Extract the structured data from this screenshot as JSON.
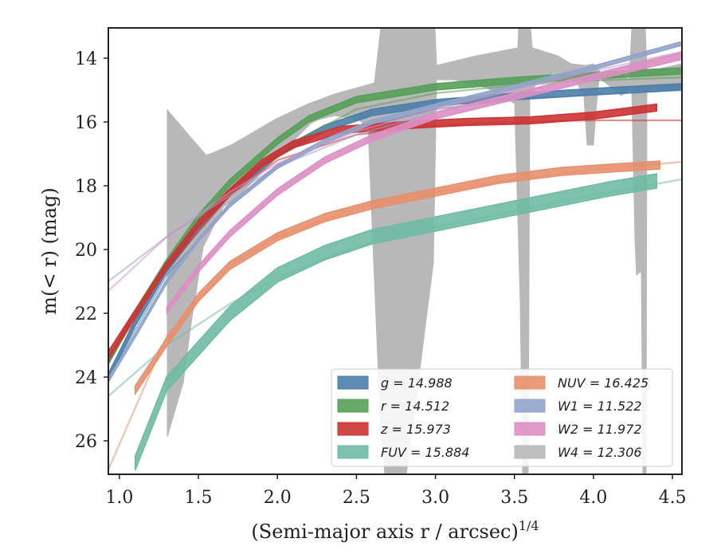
{
  "chart_data": {
    "type": "line",
    "xlabel": "(Semi-major axis r / arcsec)",
    "xlabel_sup": "1/4",
    "ylabel": "m(< r) (mag)",
    "xlim": [
      0.93,
      4.56
    ],
    "ylim": [
      27.05,
      13.05
    ],
    "y_inverted": true,
    "xticks": [
      1.0,
      1.5,
      2.0,
      2.5,
      3.0,
      3.5,
      4.0,
      4.5
    ],
    "xtick_labels": [
      "1.0",
      "1.5",
      "2.0",
      "2.5",
      "3.0",
      "3.5",
      "4.0",
      "4.5"
    ],
    "yticks": [
      14,
      16,
      18,
      20,
      22,
      24,
      26
    ],
    "ytick_labels": [
      "14",
      "16",
      "18",
      "20",
      "22",
      "24",
      "26"
    ],
    "legend_position": "lower-right",
    "legend_columns": 2,
    "series": [
      {
        "name": "g = 14.988",
        "band": "g",
        "color": "#4c7ea9",
        "kind": "band",
        "x": [
          0.93,
          1.1,
          1.3,
          1.5,
          1.7,
          2.0,
          2.3,
          2.6,
          3.0,
          3.5,
          4.0,
          4.55
        ],
        "y": [
          24.0,
          22.3,
          20.6,
          19.3,
          18.2,
          17.0,
          16.2,
          15.7,
          15.4,
          15.2,
          15.05,
          14.9
        ],
        "width": 0.2,
        "fit": {
          "x": [
            0.93,
            1.3,
            1.7,
            2.0,
            2.5,
            3.0,
            3.5,
            4.0,
            4.56
          ],
          "y": [
            24.0,
            20.8,
            18.6,
            17.4,
            16.2,
            15.6,
            15.3,
            15.15,
            15.0
          ]
        }
      },
      {
        "name": "r = 14.512",
        "band": "r",
        "color": "#55a059",
        "kind": "band",
        "x": [
          0.93,
          1.1,
          1.3,
          1.5,
          1.7,
          2.0,
          2.2,
          2.5,
          3.0,
          3.5,
          4.0,
          4.55
        ],
        "y": [
          23.5,
          22.0,
          20.4,
          19.0,
          17.9,
          16.6,
          15.9,
          15.3,
          14.9,
          14.7,
          14.55,
          14.4
        ],
        "width": 0.2,
        "fit": {
          "x": [
            0.93,
            1.3,
            1.7,
            2.0,
            2.5,
            3.0,
            3.5,
            4.0,
            4.56
          ],
          "y": [
            23.5,
            20.5,
            18.2,
            16.9,
            15.6,
            15.1,
            14.85,
            14.7,
            14.6
          ]
        }
      },
      {
        "name": "z = 15.973",
        "band": "z",
        "color": "#cc3333",
        "kind": "band",
        "x": [
          0.93,
          1.1,
          1.3,
          1.5,
          1.7,
          1.9,
          2.1,
          2.4,
          2.8,
          3.2,
          3.6,
          4.0,
          4.4
        ],
        "y": [
          23.3,
          22.0,
          20.5,
          19.2,
          18.2,
          17.3,
          16.7,
          16.25,
          16.1,
          16.0,
          15.95,
          15.8,
          15.55
        ],
        "width": 0.22,
        "fit": {
          "x": [
            0.93,
            1.3,
            1.7,
            2.0,
            2.5,
            3.0,
            3.5,
            4.0,
            4.56
          ],
          "y": [
            23.5,
            20.6,
            18.3,
            17.2,
            16.4,
            16.1,
            16.0,
            15.95,
            15.95
          ]
        }
      },
      {
        "name": "FUV = 15.884",
        "band": "FUV",
        "color": "#6fbba3",
        "kind": "band",
        "x": [
          1.1,
          1.3,
          1.5,
          1.7,
          2.0,
          2.3,
          2.6,
          3.0,
          3.4,
          3.8,
          4.1,
          4.4
        ],
        "y": [
          26.7,
          24.2,
          23.1,
          22.0,
          20.8,
          20.1,
          19.6,
          19.2,
          18.8,
          18.4,
          18.1,
          17.85
        ],
        "width": 0.45,
        "fit": {
          "x": [
            0.93,
            1.3,
            1.7,
            2.0,
            2.5,
            3.0,
            3.5,
            4.0,
            4.56
          ],
          "y": [
            24.6,
            23.0,
            21.7,
            20.9,
            19.9,
            19.3,
            18.8,
            18.3,
            17.8
          ]
        }
      },
      {
        "name": "NUV = 16.425",
        "band": "NUV",
        "color": "#e8906e",
        "kind": "band",
        "x": [
          1.1,
          1.3,
          1.5,
          1.7,
          2.0,
          2.3,
          2.6,
          3.0,
          3.4,
          3.8,
          4.1,
          4.42
        ],
        "y": [
          24.4,
          22.9,
          21.5,
          20.5,
          19.6,
          19.0,
          18.6,
          18.2,
          17.8,
          17.55,
          17.45,
          17.35
        ],
        "width": 0.25,
        "fit": {
          "x": [
            0.93,
            1.3,
            1.7,
            2.0,
            2.5,
            3.0,
            3.5,
            4.0,
            4.56
          ],
          "y": [
            26.9,
            22.7,
            20.5,
            19.6,
            18.7,
            18.2,
            17.8,
            17.5,
            17.25
          ]
        }
      },
      {
        "name": "W1 = 11.522",
        "band": "W1",
        "color": "#92a4cb",
        "kind": "band",
        "x": [
          0.93,
          1.1,
          1.3,
          1.5,
          1.7,
          2.0,
          2.3,
          2.6,
          3.0,
          3.5,
          4.0,
          4.55
        ],
        "y": [
          24.1,
          22.7,
          21.0,
          19.7,
          18.6,
          17.4,
          16.6,
          16.0,
          15.5,
          14.9,
          14.3,
          13.55
        ],
        "width": 0.12,
        "fit": {
          "x": [
            0.93,
            1.3,
            1.7,
            2.0,
            2.5,
            3.0,
            3.5,
            4.0,
            4.56
          ],
          "y": [
            21.0,
            19.6,
            18.3,
            17.4,
            16.4,
            15.7,
            15.1,
            14.5,
            13.8
          ]
        }
      },
      {
        "name": "W2 = 11.972",
        "band": "W2",
        "color": "#dd8fc4",
        "kind": "band",
        "x": [
          1.3,
          1.5,
          1.7,
          2.0,
          2.3,
          2.6,
          3.0,
          3.5,
          4.0,
          4.55
        ],
        "y": [
          21.9,
          20.6,
          19.5,
          18.2,
          17.2,
          16.5,
          15.8,
          15.2,
          14.6,
          13.95
        ],
        "width": 0.2,
        "fit": {
          "x": [
            0.93,
            1.3,
            1.7,
            2.0,
            2.5,
            3.0,
            3.5,
            4.0,
            4.56
          ],
          "y": [
            21.3,
            19.6,
            18.2,
            17.3,
            16.3,
            15.6,
            15.0,
            14.4,
            13.8
          ]
        }
      },
      {
        "name": "W4 = 12.306",
        "band": "W4",
        "color": "#b8b8b8",
        "kind": "area"
      }
    ]
  }
}
